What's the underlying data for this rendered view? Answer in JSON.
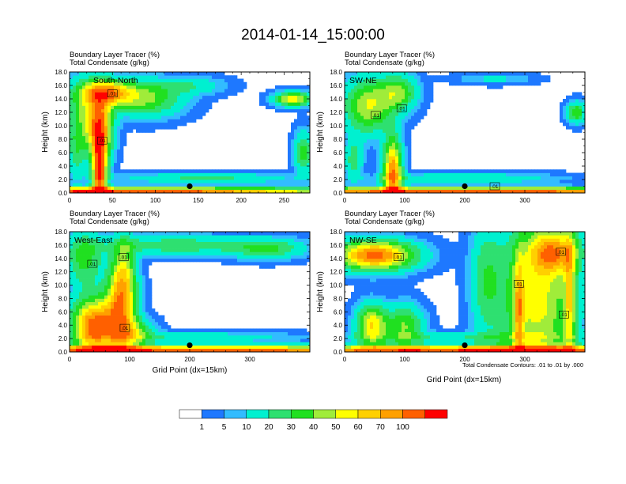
{
  "title": "2014-01-14_15:00:00",
  "header_line1": "Boundary Layer Tracer   (%)",
  "header_line2": "Total Condensate   (g/kg)",
  "ylabel": "Height (km)",
  "xlabel": "Grid Point (dx=15km)",
  "contour_note": "Total Condensate Contours: .01 to .01 by .000",
  "contour_label": ".01",
  "colors": {
    "levels": [
      "#ffffff",
      "#1e78ff",
      "#32bcff",
      "#00f0d0",
      "#2ee070",
      "#20e020",
      "#a0ec3a",
      "#ffff00",
      "#ffd000",
      "#ffa000",
      "#ff6000",
      "#ff0000"
    ],
    "colorbar": [
      "#ffffff",
      "#1e78ff",
      "#32bcff",
      "#00f0d0",
      "#2ee070",
      "#20e020",
      "#a0ec3a",
      "#ffff00",
      "#ffd000",
      "#ffa000",
      "#ff6000",
      "#ff0000"
    ],
    "colorbar_labels": [
      "1",
      "5",
      "10",
      "20",
      "30",
      "40",
      "50",
      "60",
      "70",
      "100"
    ]
  },
  "chart_data": [
    {
      "type": "heatmap",
      "name": "South-North",
      "title": "Boundary Layer Tracer (%) / Total Condensate (g/kg)",
      "label": "South-North",
      "xlim": [
        0,
        280
      ],
      "ylim": [
        0,
        18
      ],
      "xticks": [
        "0",
        "50",
        "100",
        "150",
        "200",
        "250"
      ],
      "yticks": [
        "0.0",
        "2.0",
        "4.0",
        "6.0",
        "8.0",
        "10.0",
        "12.0",
        "14.0",
        "16.0",
        "18.0"
      ],
      "marker_x": 140,
      "marker_height_km": 1.0,
      "contour_label_positions": [
        [
          50,
          14.8
        ],
        [
          38,
          7.8
        ]
      ]
    },
    {
      "type": "heatmap",
      "name": "SW-NE",
      "title": "Boundary Layer Tracer (%) / Total Condensate (g/kg)",
      "label": "SW-NE",
      "xlim": [
        0,
        400
      ],
      "ylim": [
        0,
        18
      ],
      "xticks": [
        "0",
        "100",
        "200",
        "300"
      ],
      "yticks": [
        "0.0",
        "2.0",
        "4.0",
        "6.0",
        "8.0",
        "10.0",
        "12.0",
        "14.0",
        "16.0",
        "18.0"
      ],
      "marker_x": 200,
      "marker_height_km": 1.0,
      "contour_label_positions": [
        [
          95,
          12.6
        ],
        [
          52,
          11.6
        ],
        [
          250,
          1.0
        ]
      ]
    },
    {
      "type": "heatmap",
      "name": "West-East",
      "title": "Boundary Layer Tracer (%) / Total Condensate (g/kg)",
      "label": "West-East",
      "xlim": [
        0,
        400
      ],
      "ylim": [
        0,
        18
      ],
      "xticks": [
        "0",
        "100",
        "200",
        "300"
      ],
      "yticks": [
        "0.0",
        "2.0",
        "4.0",
        "6.0",
        "8.0",
        "10.0",
        "12.0",
        "14.0",
        "16.0",
        "18.0"
      ],
      "marker_x": 200,
      "marker_height_km": 1.0,
      "contour_label_positions": [
        [
          38,
          13.2
        ],
        [
          90,
          14.2
        ],
        [
          92,
          3.6
        ]
      ]
    },
    {
      "type": "heatmap",
      "name": "NW-SE",
      "title": "Boundary Layer Tracer (%) / Total Condensate (g/kg)",
      "label": "NW-SE",
      "xlim": [
        0,
        400
      ],
      "ylim": [
        0,
        18
      ],
      "xticks": [
        "0",
        "100",
        "200",
        "300"
      ],
      "yticks": [
        "0.0",
        "2.0",
        "4.0",
        "6.0",
        "8.0",
        "10.0",
        "12.0",
        "14.0",
        "16.0",
        "18.0"
      ],
      "marker_x": 200,
      "marker_height_km": 1.0,
      "contour_label_positions": [
        [
          90,
          14.2
        ],
        [
          290,
          10.2
        ],
        [
          360,
          15.0
        ],
        [
          365,
          5.6
        ]
      ]
    }
  ]
}
